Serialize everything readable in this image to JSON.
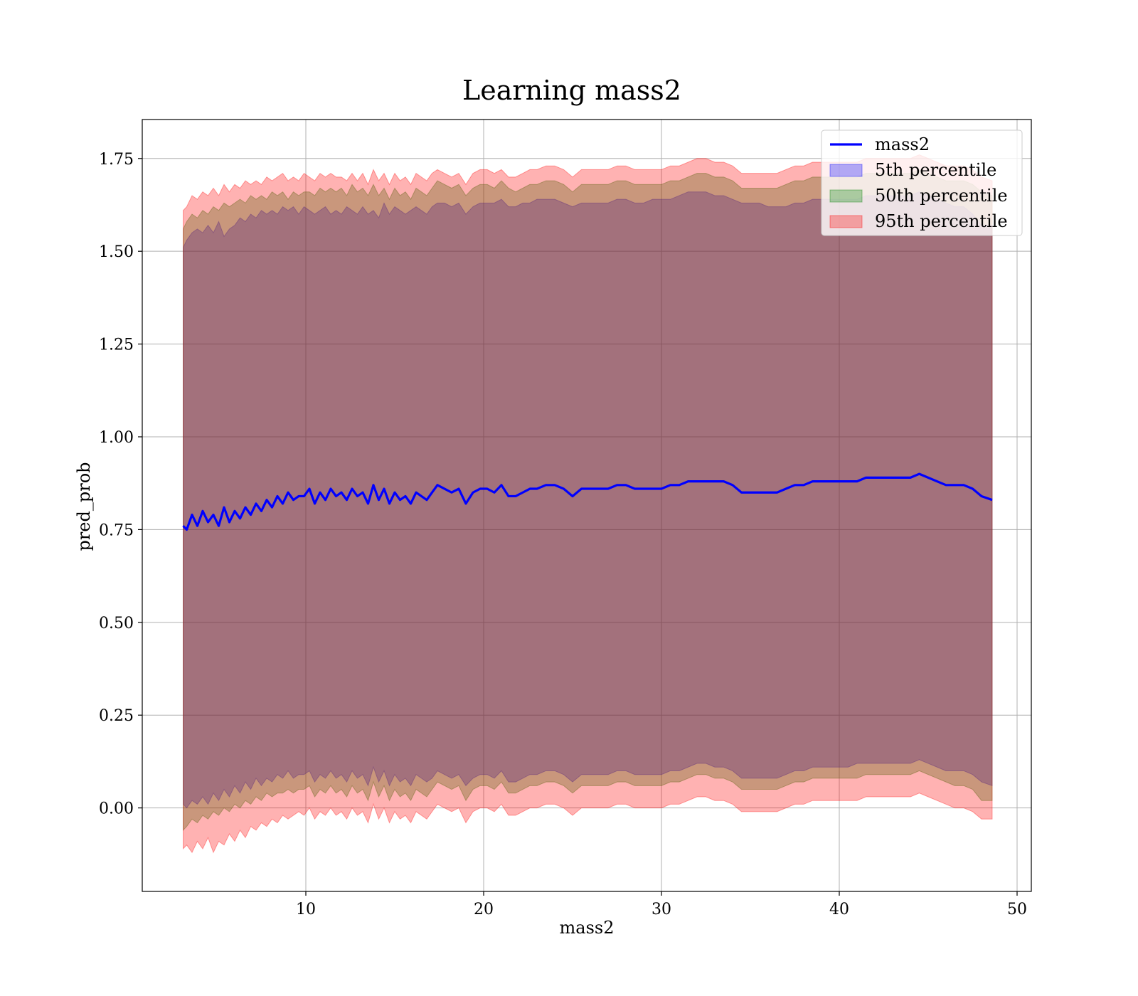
{
  "chart_data": {
    "type": "area",
    "title": "Learning mass2",
    "xlabel": "mass2",
    "ylabel": "pred_prob",
    "xlim": [
      0.8,
      50.8
    ],
    "ylim": [
      -0.225,
      1.855
    ],
    "xticks": [
      10,
      20,
      30,
      40,
      50
    ],
    "xtick_labels": [
      "10",
      "20",
      "30",
      "40",
      "50"
    ],
    "yticks": [
      0.0,
      0.25,
      0.5,
      0.75,
      1.0,
      1.25,
      1.5,
      1.75
    ],
    "ytick_labels": [
      "0.00",
      "0.25",
      "0.50",
      "0.75",
      "1.00",
      "1.25",
      "1.50",
      "1.75"
    ],
    "grid": true,
    "legend_position": "upper right",
    "x": [
      3.1,
      3.3,
      3.6,
      3.9,
      4.2,
      4.5,
      4.8,
      5.1,
      5.4,
      5.7,
      6.0,
      6.3,
      6.6,
      6.9,
      7.2,
      7.5,
      7.8,
      8.1,
      8.4,
      8.7,
      9.0,
      9.3,
      9.6,
      9.9,
      10.2,
      10.5,
      10.8,
      11.1,
      11.4,
      11.7,
      12.0,
      12.3,
      12.6,
      12.9,
      13.2,
      13.5,
      13.8,
      14.1,
      14.4,
      14.7,
      15.0,
      15.3,
      15.6,
      15.9,
      16.2,
      16.5,
      16.8,
      17.1,
      17.4,
      17.8,
      18.2,
      18.6,
      19.0,
      19.4,
      19.8,
      20.2,
      20.6,
      21.0,
      21.4,
      21.8,
      22.2,
      22.6,
      23.0,
      23.5,
      24.0,
      24.5,
      25.0,
      25.5,
      26.0,
      26.5,
      27.0,
      27.5,
      28.0,
      28.5,
      29.0,
      29.5,
      30.0,
      30.5,
      31.0,
      31.5,
      32.0,
      32.5,
      33.0,
      33.5,
      34.0,
      34.5,
      35.0,
      35.5,
      36.0,
      36.5,
      37.0,
      37.5,
      38.0,
      38.5,
      39.0,
      39.5,
      40.0,
      40.5,
      41.0,
      41.5,
      42.0,
      42.5,
      43.0,
      43.5,
      44.0,
      44.5,
      45.0,
      45.5,
      46.0,
      46.5,
      47.0,
      47.5,
      48.0,
      48.6
    ],
    "series": [
      {
        "name": "mass2",
        "kind": "line",
        "color": "#0000ff",
        "values": [
          0.76,
          0.75,
          0.79,
          0.76,
          0.8,
          0.77,
          0.79,
          0.76,
          0.81,
          0.77,
          0.8,
          0.78,
          0.81,
          0.79,
          0.82,
          0.8,
          0.83,
          0.81,
          0.84,
          0.82,
          0.85,
          0.83,
          0.84,
          0.84,
          0.86,
          0.82,
          0.85,
          0.83,
          0.86,
          0.84,
          0.85,
          0.83,
          0.86,
          0.84,
          0.85,
          0.82,
          0.87,
          0.83,
          0.86,
          0.82,
          0.85,
          0.83,
          0.84,
          0.82,
          0.85,
          0.84,
          0.83,
          0.85,
          0.87,
          0.86,
          0.85,
          0.86,
          0.82,
          0.85,
          0.86,
          0.86,
          0.85,
          0.87,
          0.84,
          0.84,
          0.85,
          0.86,
          0.86,
          0.87,
          0.87,
          0.86,
          0.84,
          0.86,
          0.86,
          0.86,
          0.86,
          0.87,
          0.87,
          0.86,
          0.86,
          0.86,
          0.86,
          0.87,
          0.87,
          0.88,
          0.88,
          0.88,
          0.88,
          0.88,
          0.87,
          0.85,
          0.85,
          0.85,
          0.85,
          0.85,
          0.86,
          0.87,
          0.87,
          0.88,
          0.88,
          0.88,
          0.88,
          0.88,
          0.88,
          0.89,
          0.89,
          0.89,
          0.89,
          0.89,
          0.89,
          0.9,
          0.89,
          0.88,
          0.87,
          0.87,
          0.87,
          0.86,
          0.84,
          0.83
        ]
      },
      {
        "name": "5th percentile",
        "kind": "band",
        "color": "#0000ff",
        "upper": [
          1.51,
          1.53,
          1.55,
          1.56,
          1.55,
          1.57,
          1.55,
          1.58,
          1.54,
          1.56,
          1.57,
          1.59,
          1.58,
          1.6,
          1.59,
          1.61,
          1.6,
          1.61,
          1.6,
          1.62,
          1.61,
          1.62,
          1.6,
          1.62,
          1.61,
          1.6,
          1.61,
          1.62,
          1.6,
          1.61,
          1.6,
          1.62,
          1.61,
          1.6,
          1.62,
          1.6,
          1.61,
          1.59,
          1.63,
          1.6,
          1.62,
          1.61,
          1.6,
          1.61,
          1.62,
          1.61,
          1.6,
          1.62,
          1.63,
          1.63,
          1.62,
          1.63,
          1.6,
          1.62,
          1.63,
          1.63,
          1.63,
          1.64,
          1.62,
          1.62,
          1.63,
          1.63,
          1.64,
          1.64,
          1.64,
          1.63,
          1.62,
          1.63,
          1.63,
          1.63,
          1.63,
          1.64,
          1.64,
          1.63,
          1.63,
          1.64,
          1.64,
          1.64,
          1.65,
          1.66,
          1.66,
          1.66,
          1.65,
          1.65,
          1.64,
          1.63,
          1.63,
          1.63,
          1.62,
          1.62,
          1.62,
          1.63,
          1.63,
          1.64,
          1.64,
          1.64,
          1.64,
          1.64,
          1.64,
          1.65,
          1.65,
          1.65,
          1.65,
          1.65,
          1.65,
          1.66,
          1.65,
          1.64,
          1.63,
          1.62,
          1.62,
          1.6,
          1.57,
          1.57
        ],
        "lower": [
          0.01,
          0.0,
          0.02,
          0.01,
          0.03,
          0.01,
          0.04,
          0.02,
          0.05,
          0.03,
          0.06,
          0.04,
          0.07,
          0.05,
          0.08,
          0.06,
          0.08,
          0.07,
          0.09,
          0.08,
          0.1,
          0.08,
          0.09,
          0.09,
          0.1,
          0.07,
          0.09,
          0.08,
          0.1,
          0.08,
          0.09,
          0.07,
          0.1,
          0.08,
          0.09,
          0.06,
          0.11,
          0.07,
          0.1,
          0.06,
          0.09,
          0.07,
          0.08,
          0.06,
          0.09,
          0.08,
          0.07,
          0.08,
          0.1,
          0.09,
          0.08,
          0.09,
          0.06,
          0.08,
          0.09,
          0.09,
          0.08,
          0.1,
          0.07,
          0.07,
          0.08,
          0.09,
          0.09,
          0.1,
          0.1,
          0.09,
          0.07,
          0.09,
          0.09,
          0.09,
          0.09,
          0.1,
          0.1,
          0.09,
          0.09,
          0.09,
          0.09,
          0.1,
          0.1,
          0.11,
          0.12,
          0.12,
          0.11,
          0.11,
          0.1,
          0.08,
          0.08,
          0.08,
          0.08,
          0.08,
          0.09,
          0.1,
          0.1,
          0.11,
          0.11,
          0.11,
          0.11,
          0.11,
          0.12,
          0.12,
          0.12,
          0.12,
          0.12,
          0.12,
          0.12,
          0.13,
          0.12,
          0.11,
          0.1,
          0.1,
          0.1,
          0.09,
          0.07,
          0.06
        ]
      },
      {
        "name": "50th percentile",
        "kind": "band",
        "color": "#008000",
        "upper": [
          1.56,
          1.58,
          1.6,
          1.59,
          1.61,
          1.6,
          1.62,
          1.61,
          1.63,
          1.62,
          1.63,
          1.64,
          1.63,
          1.65,
          1.64,
          1.65,
          1.64,
          1.66,
          1.65,
          1.66,
          1.64,
          1.66,
          1.65,
          1.66,
          1.66,
          1.65,
          1.67,
          1.66,
          1.67,
          1.66,
          1.67,
          1.65,
          1.68,
          1.66,
          1.67,
          1.65,
          1.68,
          1.65,
          1.67,
          1.64,
          1.67,
          1.65,
          1.66,
          1.64,
          1.67,
          1.66,
          1.65,
          1.67,
          1.69,
          1.68,
          1.67,
          1.68,
          1.65,
          1.67,
          1.68,
          1.68,
          1.67,
          1.69,
          1.67,
          1.66,
          1.67,
          1.68,
          1.68,
          1.69,
          1.69,
          1.68,
          1.66,
          1.68,
          1.68,
          1.68,
          1.68,
          1.69,
          1.69,
          1.68,
          1.68,
          1.68,
          1.68,
          1.69,
          1.69,
          1.7,
          1.71,
          1.71,
          1.7,
          1.7,
          1.69,
          1.67,
          1.67,
          1.67,
          1.67,
          1.67,
          1.68,
          1.69,
          1.69,
          1.7,
          1.7,
          1.7,
          1.7,
          1.7,
          1.7,
          1.71,
          1.71,
          1.71,
          1.71,
          1.71,
          1.71,
          1.72,
          1.71,
          1.7,
          1.69,
          1.69,
          1.69,
          1.68,
          1.66,
          1.65
        ],
        "lower": [
          -0.06,
          -0.05,
          -0.03,
          -0.04,
          -0.02,
          -0.03,
          -0.01,
          -0.02,
          0.0,
          -0.01,
          0.01,
          0.0,
          0.02,
          0.01,
          0.03,
          0.02,
          0.04,
          0.03,
          0.04,
          0.04,
          0.05,
          0.04,
          0.05,
          0.05,
          0.06,
          0.03,
          0.05,
          0.04,
          0.06,
          0.04,
          0.05,
          0.03,
          0.06,
          0.04,
          0.05,
          0.02,
          0.07,
          0.03,
          0.06,
          0.02,
          0.05,
          0.03,
          0.04,
          0.02,
          0.05,
          0.04,
          0.03,
          0.05,
          0.07,
          0.06,
          0.05,
          0.06,
          0.02,
          0.05,
          0.06,
          0.06,
          0.05,
          0.07,
          0.04,
          0.04,
          0.05,
          0.06,
          0.06,
          0.07,
          0.07,
          0.06,
          0.04,
          0.06,
          0.06,
          0.06,
          0.06,
          0.07,
          0.07,
          0.06,
          0.06,
          0.06,
          0.06,
          0.07,
          0.07,
          0.08,
          0.09,
          0.09,
          0.08,
          0.08,
          0.07,
          0.05,
          0.05,
          0.05,
          0.05,
          0.05,
          0.06,
          0.07,
          0.07,
          0.08,
          0.08,
          0.08,
          0.08,
          0.08,
          0.08,
          0.09,
          0.09,
          0.09,
          0.09,
          0.09,
          0.09,
          0.1,
          0.09,
          0.08,
          0.07,
          0.06,
          0.06,
          0.05,
          0.02,
          0.02
        ]
      },
      {
        "name": "95th percentile",
        "kind": "band",
        "color": "#ff0000",
        "upper": [
          1.61,
          1.62,
          1.65,
          1.64,
          1.66,
          1.65,
          1.67,
          1.65,
          1.68,
          1.66,
          1.68,
          1.67,
          1.69,
          1.68,
          1.69,
          1.68,
          1.7,
          1.69,
          1.7,
          1.71,
          1.69,
          1.7,
          1.69,
          1.71,
          1.7,
          1.69,
          1.71,
          1.7,
          1.71,
          1.7,
          1.7,
          1.69,
          1.71,
          1.69,
          1.71,
          1.68,
          1.72,
          1.69,
          1.71,
          1.68,
          1.71,
          1.69,
          1.7,
          1.68,
          1.71,
          1.7,
          1.69,
          1.71,
          1.72,
          1.71,
          1.7,
          1.71,
          1.68,
          1.71,
          1.72,
          1.72,
          1.71,
          1.72,
          1.7,
          1.7,
          1.71,
          1.72,
          1.72,
          1.73,
          1.73,
          1.72,
          1.7,
          1.72,
          1.72,
          1.72,
          1.72,
          1.73,
          1.73,
          1.72,
          1.72,
          1.72,
          1.72,
          1.73,
          1.73,
          1.74,
          1.75,
          1.75,
          1.74,
          1.74,
          1.73,
          1.71,
          1.71,
          1.71,
          1.71,
          1.71,
          1.72,
          1.73,
          1.73,
          1.74,
          1.74,
          1.74,
          1.74,
          1.74,
          1.74,
          1.75,
          1.75,
          1.75,
          1.75,
          1.75,
          1.75,
          1.76,
          1.75,
          1.74,
          1.73,
          1.73,
          1.73,
          1.72,
          1.7,
          1.69
        ],
        "lower": [
          -0.11,
          -0.1,
          -0.12,
          -0.09,
          -0.11,
          -0.08,
          -0.12,
          -0.09,
          -0.1,
          -0.07,
          -0.09,
          -0.06,
          -0.08,
          -0.05,
          -0.06,
          -0.04,
          -0.05,
          -0.03,
          -0.04,
          -0.02,
          -0.03,
          -0.02,
          -0.01,
          -0.02,
          0.0,
          -0.03,
          -0.01,
          -0.02,
          0.0,
          -0.02,
          -0.01,
          -0.03,
          0.0,
          -0.02,
          -0.01,
          -0.04,
          0.01,
          -0.03,
          0.0,
          -0.04,
          -0.01,
          -0.03,
          -0.02,
          -0.04,
          -0.01,
          -0.02,
          -0.03,
          -0.01,
          0.01,
          0.0,
          -0.01,
          0.0,
          -0.04,
          -0.01,
          0.0,
          0.0,
          -0.01,
          0.01,
          -0.02,
          -0.02,
          -0.01,
          0.0,
          0.0,
          0.01,
          0.01,
          0.0,
          -0.02,
          0.0,
          0.0,
          0.0,
          0.0,
          0.01,
          0.01,
          0.0,
          0.0,
          0.0,
          0.0,
          0.01,
          0.01,
          0.02,
          0.03,
          0.03,
          0.02,
          0.02,
          0.01,
          -0.01,
          -0.01,
          -0.01,
          -0.01,
          -0.01,
          0.0,
          0.01,
          0.01,
          0.02,
          0.02,
          0.02,
          0.02,
          0.02,
          0.02,
          0.03,
          0.03,
          0.03,
          0.03,
          0.03,
          0.03,
          0.04,
          0.03,
          0.02,
          0.01,
          0.0,
          0.0,
          -0.01,
          -0.03,
          -0.03
        ]
      }
    ]
  }
}
